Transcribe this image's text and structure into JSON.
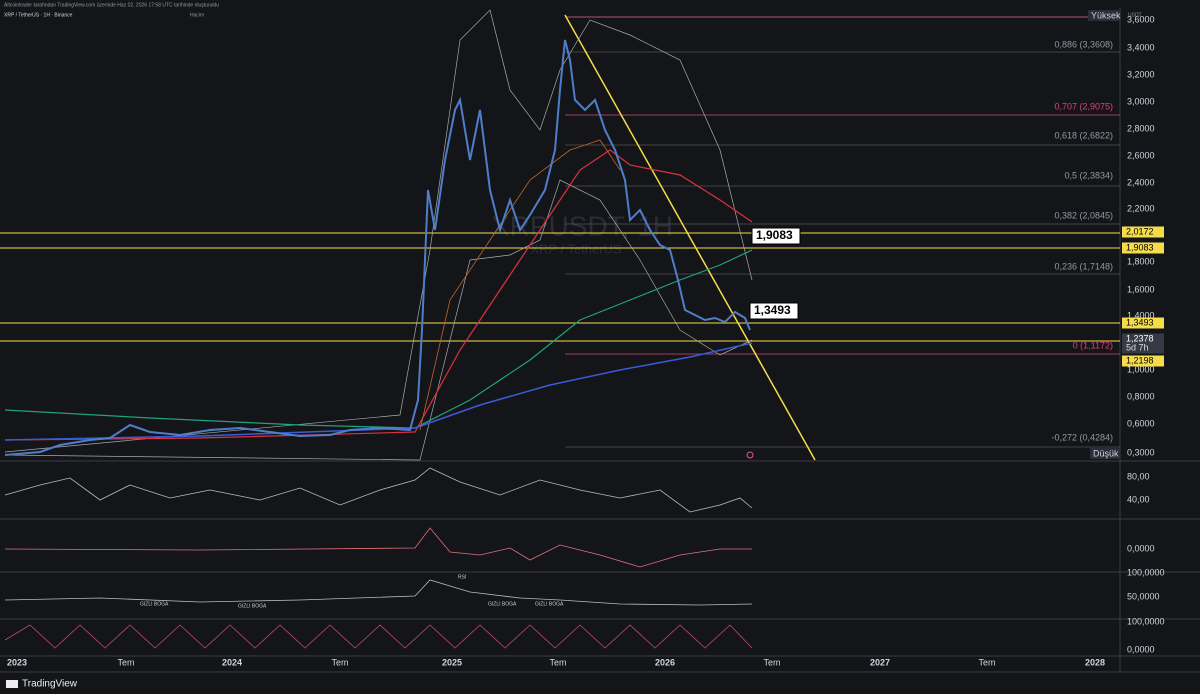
{
  "header": {
    "credit": "Altcointrader tarafından TradingView.com üzerinde Haz 02, 2026 17:58 UTC tarihinde oluşturuldu",
    "symbol": "XRP / TetherUS · 1H · Binance",
    "volume_label": "Hacim"
  },
  "watermark": {
    "ticker": "XRPUSDT, 1H",
    "name": "XRP / TetherUS"
  },
  "price_axis": {
    "currency": "USDT",
    "high_label": "Yüksek",
    "low_label": "Düşük",
    "labels": [
      "3,6000",
      "3,4000",
      "3,2000",
      "3,0000",
      "2,8000",
      "2,6000",
      "2,4000",
      "2,2000",
      "1,8000",
      "1,6000",
      "1,4000",
      "1,0000",
      "0,8000",
      "0,6000",
      "0,3000"
    ]
  },
  "price_tags": [
    {
      "label": "2,0172"
    },
    {
      "label": "1,9083"
    },
    {
      "label": "1,3493"
    },
    {
      "label": "1,2378",
      "countdown": "5d 7h"
    },
    {
      "label": "1,2198"
    }
  ],
  "fib_levels": [
    "0,886 (3,3608)",
    "0,707 (2,9075)",
    "0,618 (2,6822)",
    "0,5 (2,3834)",
    "0,382 (2,0845)",
    "0,236 (1,7148)",
    "0 (1,1172)",
    "-0,272 (0,4284)"
  ],
  "callouts": [
    "1,9083",
    "1,3493"
  ],
  "indicator_axes": [
    [
      "80,00",
      "40,00"
    ],
    [
      "0,0000"
    ],
    [
      "100,0000",
      "50,0000"
    ],
    [
      "100,0000",
      "0,0000"
    ]
  ],
  "annotations": [
    "GIZLI BOGA",
    "GIZLI BOGA",
    "GIZLI BOGA",
    "GIZLI BOGA",
    "RSI"
  ],
  "time_axis": [
    "2023",
    "Tem",
    "2024",
    "Tem",
    "2025",
    "Tem",
    "2026",
    "Tem",
    "2027",
    "Tem",
    "2028"
  ],
  "footer": {
    "brand": "TradingView"
  }
}
